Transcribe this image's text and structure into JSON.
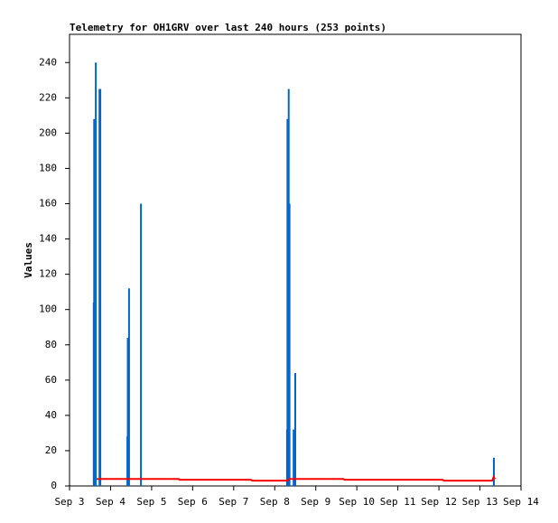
{
  "chart_data": {
    "type": "line",
    "title": "Telemetry for OH1GRV over last 240 hours (253 points)",
    "y_label": "Values",
    "grid": false,
    "xlim": [
      3,
      14
    ],
    "xticks": [
      {
        "value": 3,
        "label": "Sep 3"
      },
      {
        "value": 4,
        "label": "Sep 4"
      },
      {
        "value": 5,
        "label": "Sep 5"
      },
      {
        "value": 6,
        "label": "Sep 6"
      },
      {
        "value": 7,
        "label": "Sep 7"
      },
      {
        "value": 8,
        "label": "Sep 8"
      },
      {
        "value": 9,
        "label": "Sep 9"
      },
      {
        "value": 10,
        "label": "Sep 10"
      },
      {
        "value": 11,
        "label": "Sep 11"
      },
      {
        "value": 12,
        "label": "Sep 12"
      },
      {
        "value": 13,
        "label": "Sep 13"
      },
      {
        "value": 14,
        "label": "Sep 14"
      }
    ],
    "ylim": [
      0,
      256
    ],
    "yticks": [
      0,
      20,
      40,
      60,
      80,
      100,
      120,
      140,
      160,
      180,
      200,
      220,
      240
    ],
    "series": [
      {
        "color": "#0066cc",
        "style": "impulse",
        "x": [
          3.59,
          3.6,
          3.64,
          3.73,
          3.75,
          4.41,
          4.42,
          4.45,
          4.74,
          8.3,
          8.31,
          8.34,
          8.36,
          8.46,
          8.5,
          13.34
        ],
        "values": [
          104,
          208,
          240,
          225,
          225,
          28,
          84,
          112,
          160,
          32,
          208,
          225,
          160,
          32,
          64,
          16
        ]
      },
      {
        "color": "#ff0000",
        "style": "line",
        "x": [
          3.66,
          5.66,
          5.68,
          7.42,
          7.45,
          8.3,
          8.36,
          9.67,
          9.7,
          12.09,
          12.12,
          13.3,
          13.33,
          13.37
        ],
        "values": [
          4,
          4,
          3.5,
          3.5,
          3,
          3,
          4,
          4,
          3.5,
          3.5,
          3,
          3,
          5,
          4
        ]
      }
    ]
  }
}
